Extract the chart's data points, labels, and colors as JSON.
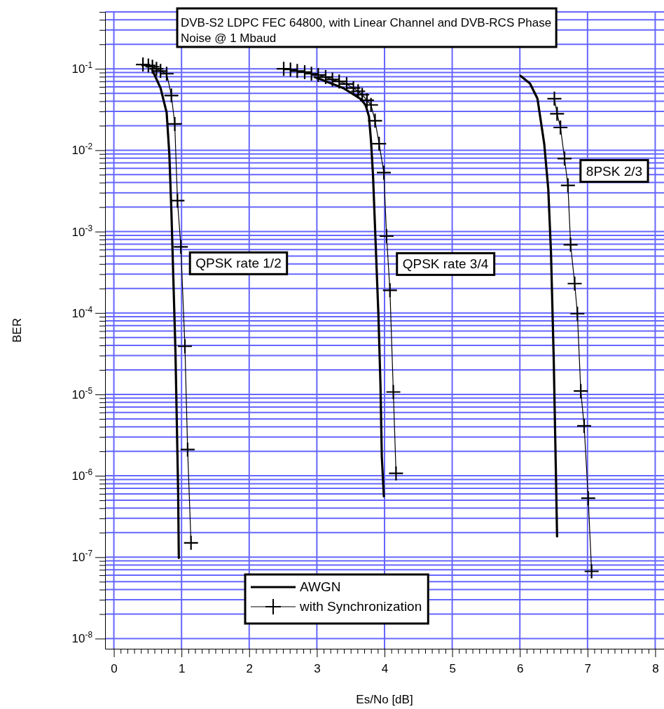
{
  "chart_data": {
    "type": "line",
    "title": "DVB-S2 LDPC FEC 64800, with Linear Channel and DVB-RCS Phase Noise @ 1 Mbaud",
    "xlabel": "Es/No [dB]",
    "ylabel": "BER",
    "log": "y",
    "grid": true,
    "legend": "bottom",
    "xlim": [
      -0.13,
      8.13
    ],
    "ylim": [
      7.5e-09,
      0.5
    ],
    "xticks": [
      0,
      {
        "value": 0.1,
        "label": null
      },
      {
        "value": 0.2,
        "label": null
      },
      {
        "value": 0.3,
        "label": null
      },
      {
        "value": 0.4,
        "label": null
      },
      {
        "value": 0.5,
        "label": null
      },
      {
        "value": 0.6,
        "label": null
      },
      {
        "value": 0.7,
        "label": null
      },
      {
        "value": 0.8,
        "label": null
      },
      {
        "value": 0.9,
        "label": null
      },
      1,
      {
        "value": 1.1,
        "label": null
      },
      {
        "value": 1.2,
        "label": null
      },
      {
        "value": 1.3,
        "label": null
      },
      {
        "value": 1.4,
        "label": null
      },
      {
        "value": 1.5,
        "label": null
      },
      {
        "value": 1.6,
        "label": null
      },
      {
        "value": 1.7,
        "label": null
      },
      {
        "value": 1.8,
        "label": null
      },
      {
        "value": 1.9,
        "label": null
      },
      2,
      {
        "value": 2.1,
        "label": null
      },
      {
        "value": 2.2,
        "label": null
      },
      {
        "value": 2.3,
        "label": null
      },
      {
        "value": 2.4,
        "label": null
      },
      {
        "value": 2.5,
        "label": null
      },
      {
        "value": 2.6,
        "label": null
      },
      {
        "value": 2.7,
        "label": null
      },
      {
        "value": 2.8,
        "label": null
      },
      {
        "value": 2.9,
        "label": null
      },
      3,
      {
        "value": 3.1,
        "label": null
      },
      {
        "value": 3.2,
        "label": null
      },
      {
        "value": 3.3,
        "label": null
      },
      {
        "value": 3.4,
        "label": null
      },
      {
        "value": 3.5,
        "label": null
      },
      {
        "value": 3.6,
        "label": null
      },
      {
        "value": 3.7,
        "label": null
      },
      {
        "value": 3.8,
        "label": null
      },
      {
        "value": 3.9,
        "label": null
      },
      4,
      {
        "value": 4.1,
        "label": null
      },
      {
        "value": 4.2,
        "label": null
      },
      {
        "value": 4.3,
        "label": null
      },
      {
        "value": 4.4,
        "label": null
      },
      {
        "value": 4.5,
        "label": null
      },
      {
        "value": 4.6,
        "label": null
      },
      {
        "value": 4.7,
        "label": null
      },
      {
        "value": 4.8,
        "label": null
      },
      {
        "value": 4.9,
        "label": null
      },
      5,
      {
        "value": 5.1,
        "label": null
      },
      {
        "value": 5.2,
        "label": null
      },
      {
        "value": 5.3,
        "label": null
      },
      {
        "value": 5.4,
        "label": null
      },
      {
        "value": 5.5,
        "label": null
      },
      {
        "value": 5.6,
        "label": null
      },
      {
        "value": 5.7,
        "label": null
      },
      {
        "value": 5.8,
        "label": null
      },
      {
        "value": 5.9,
        "label": null
      },
      6,
      {
        "value": 6.1,
        "label": null
      },
      {
        "value": 6.2,
        "label": null
      },
      {
        "value": 6.3,
        "label": null
      },
      {
        "value": 6.4,
        "label": null
      },
      {
        "value": 6.5,
        "label": null
      },
      {
        "value": 6.6,
        "label": null
      },
      {
        "value": 6.7,
        "label": null
      },
      {
        "value": 6.8,
        "label": null
      },
      {
        "value": 6.9,
        "label": null
      },
      7,
      {
        "value": 7.1,
        "label": null
      },
      {
        "value": 7.2,
        "label": null
      },
      {
        "value": 7.3,
        "label": null
      },
      {
        "value": 7.4,
        "label": null
      },
      {
        "value": 7.5,
        "label": null
      },
      {
        "value": 7.6,
        "label": null
      },
      {
        "value": 7.7,
        "label": null
      },
      {
        "value": 7.8,
        "label": null
      },
      {
        "value": 7.9,
        "label": null
      },
      8
    ],
    "yticks": [
      {
        "value": 0.5,
        "label": null
      },
      {
        "value": 0.4,
        "label": null
      },
      {
        "value": 0.3,
        "label": null
      },
      {
        "value": 0.2,
        "label": null
      },
      {
        "value": 0.1,
        "label": "10$^{-1}$"
      },
      {
        "value": 0.09,
        "label": null
      },
      {
        "value": 0.08,
        "label": null
      },
      {
        "value": 0.07,
        "label": null
      },
      {
        "value": 0.06,
        "label": null
      },
      {
        "value": 0.05,
        "label": null
      },
      {
        "value": 0.04,
        "label": null
      },
      {
        "value": 0.03,
        "label": null
      },
      {
        "value": 0.02,
        "label": null
      },
      {
        "value": 0.01,
        "label": "10$^{-2}$"
      },
      {
        "value": 0.009,
        "label": null
      },
      {
        "value": 0.008,
        "label": null
      },
      {
        "value": 0.007,
        "label": null
      },
      {
        "value": 0.006,
        "label": null
      },
      {
        "value": 0.005,
        "label": null
      },
      {
        "value": 0.004,
        "label": null
      },
      {
        "value": 0.003,
        "label": null
      },
      {
        "value": 0.002,
        "label": null
      },
      {
        "value": 0.001,
        "label": "10$^{-3}$"
      },
      {
        "value": 0.0009,
        "label": null
      },
      {
        "value": 0.0008,
        "label": null
      },
      {
        "value": 0.0007,
        "label": null
      },
      {
        "value": 0.0006,
        "label": null
      },
      {
        "value": 0.0005,
        "label": null
      },
      {
        "value": 0.0004,
        "label": null
      },
      {
        "value": 0.0003,
        "label": null
      },
      {
        "value": 0.0002,
        "label": null
      },
      {
        "value": 0.0001,
        "label": "10$^{-4}$"
      },
      {
        "value": 9e-05,
        "label": null
      },
      {
        "value": 8e-05,
        "label": null
      },
      {
        "value": 7e-05,
        "label": null
      },
      {
        "value": 6e-05,
        "label": null
      },
      {
        "value": 5e-05,
        "label": null
      },
      {
        "value": 4e-05,
        "label": null
      },
      {
        "value": 3e-05,
        "label": null
      },
      {
        "value": 2e-05,
        "label": null
      },
      {
        "value": 1e-05,
        "label": "10$^{-5}$"
      },
      {
        "value": 9e-06,
        "label": null
      },
      {
        "value": 8e-06,
        "label": null
      },
      {
        "value": 7e-06,
        "label": null
      },
      {
        "value": 6e-06,
        "label": null
      },
      {
        "value": 5e-06,
        "label": null
      },
      {
        "value": 4e-06,
        "label": null
      },
      {
        "value": 3e-06,
        "label": null
      },
      {
        "value": 2e-06,
        "label": null
      },
      {
        "value": 1e-06,
        "label": "10$^{-6}$"
      },
      {
        "value": 9e-07,
        "label": null
      },
      {
        "value": 8e-07,
        "label": null
      },
      {
        "value": 7e-07,
        "label": null
      },
      {
        "value": 6e-07,
        "label": null
      },
      {
        "value": 5e-07,
        "label": null
      },
      {
        "value": 4e-07,
        "label": null
      },
      {
        "value": 3e-07,
        "label": null
      },
      {
        "value": 2e-07,
        "label": null
      },
      {
        "value": 1e-07,
        "label": "10$^{-7}$"
      },
      {
        "value": 9e-08,
        "label": null
      },
      {
        "value": 8e-08,
        "label": null
      },
      {
        "value": 7e-08,
        "label": null
      },
      {
        "value": 6e-08,
        "label": null
      },
      {
        "value": 5e-08,
        "label": null
      },
      {
        "value": 4e-08,
        "label": null
      },
      {
        "value": 3e-08,
        "label": null
      },
      {
        "value": 2e-08,
        "label": null
      },
      {
        "value": 1e-08,
        "label": "10$^{-8}$"
      }
    ],
    "series": [
      {
        "name": "AWGN",
        "color": "#000000",
        "marker": "none",
        "x": [
          0.57,
          0.69,
          0.78,
          0.82,
          0.85,
          0.88,
          0.91,
          0.93,
          0.95,
          0.96
        ],
        "values": [
          0.096,
          0.058,
          0.029,
          0.0089,
          0.0018,
          0.00025,
          3.4e-05,
          4.7e-06,
          6.4e-07,
          9.8e-08
        ]
      },
      {
        "name": "with Synchronization",
        "color": "#000000",
        "marker": "cross",
        "x": [
          0.43,
          0.51,
          0.57,
          0.63,
          0.69,
          0.78,
          0.85,
          0.9,
          0.94,
          0.99,
          1.05,
          1.09,
          1.14
        ],
        "values": [
          0.113,
          0.11,
          0.106,
          0.1,
          0.094,
          0.087,
          0.047,
          0.021,
          0.0024,
          0.00065,
          3.9e-05,
          2.1e-06,
          1.5e-07
        ]
      },
      {
        "color": "#000000",
        "marker": "none",
        "x": [
          2.97,
          3.39,
          3.64,
          3.72,
          3.77,
          3.8,
          3.83,
          3.87,
          3.91,
          3.94,
          3.96,
          3.99
        ],
        "values": [
          0.079,
          0.058,
          0.043,
          0.036,
          0.026,
          0.013,
          0.0049,
          0.00067,
          9.3e-05,
          1.3e-05,
          1.7e-06,
          5.6e-07
        ]
      },
      {
        "color": "#000000",
        "marker": "cross",
        "x": [
          2.51,
          2.61,
          2.71,
          2.82,
          2.92,
          3.02,
          3.13,
          3.23,
          3.33,
          3.44,
          3.54,
          3.61,
          3.67,
          3.74,
          3.8,
          3.86,
          3.92,
          3.99,
          4.03,
          4.08,
          4.13,
          4.17
        ],
        "values": [
          0.1,
          0.098,
          0.094,
          0.091,
          0.087,
          0.084,
          0.079,
          0.074,
          0.07,
          0.065,
          0.058,
          0.053,
          0.048,
          0.041,
          0.036,
          0.023,
          0.012,
          0.0053,
          0.00088,
          0.00019,
          1.07e-05,
          1.07e-06
        ]
      },
      {
        "color": "#000000",
        "marker": "none",
        "x": [
          6.01,
          6.15,
          6.26,
          6.36,
          6.42,
          6.46,
          6.5,
          6.53,
          6.55
        ],
        "values": [
          0.082,
          0.066,
          0.043,
          0.012,
          0.0033,
          0.00055,
          2.8e-05,
          1.4e-06,
          1.8e-07
        ]
      },
      {
        "color": "#000000",
        "marker": "cross",
        "x": [
          6.51,
          6.55,
          6.6,
          6.66,
          6.71,
          6.75,
          6.81,
          6.85,
          6.9,
          6.95,
          7.01,
          7.06
        ],
        "values": [
          0.043,
          0.028,
          0.019,
          0.0079,
          0.0037,
          0.00069,
          0.00023,
          9.8e-05,
          1.1e-05,
          4.1e-06,
          5.3e-07,
          6.7e-08
        ]
      }
    ],
    "annotations": [
      {
        "text": "QPSK rate 1/2",
        "x": 0.99,
        "y": 0.00065
      },
      {
        "text": "QPSK rate 3/4",
        "x": 4.08,
        "y": 0.00019
      },
      {
        "text": "8PSK 2/3",
        "x": 6.71,
        "y": 0.0037
      }
    ]
  }
}
